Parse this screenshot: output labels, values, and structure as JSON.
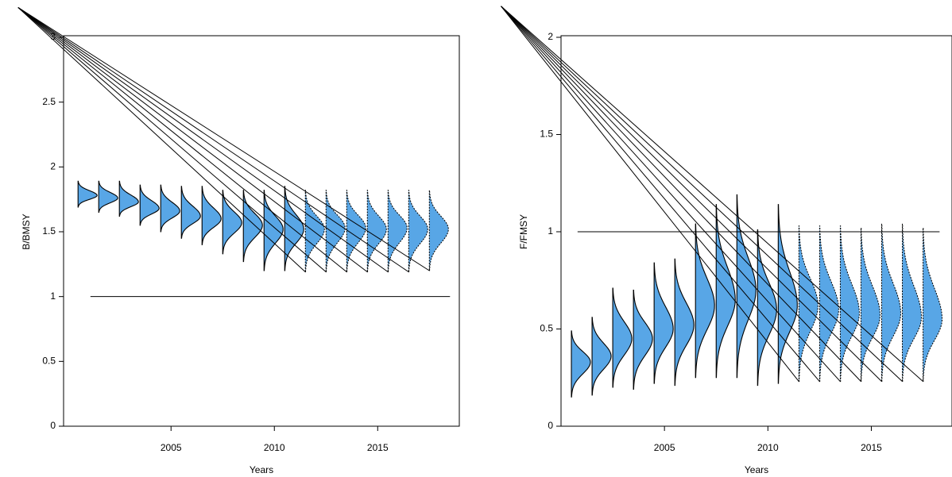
{
  "chart_data": [
    {
      "type": "violin",
      "y_label": "B/BMSY",
      "x_label": "Years",
      "xlim": [
        1999.8,
        2018.95
      ],
      "ylim": [
        0,
        3
      ],
      "xticks": [
        2005,
        2010,
        2015
      ],
      "yticks": [
        0,
        0.5,
        1,
        1.5,
        2,
        2.5,
        3
      ],
      "color": "#58a6e6",
      "x": [
        2000.5,
        2001.5,
        2002.5,
        2003.5,
        2004.5,
        2005.5,
        2006.5,
        2007.5,
        2008.5,
        2009.5,
        2010.5,
        2011.5,
        2012.5,
        2013.5,
        2014.5,
        2015.5,
        2016.5,
        2017.5
      ],
      "low": [
        1.69,
        1.65,
        1.62,
        1.55,
        1.5,
        1.45,
        1.4,
        1.33,
        1.27,
        1.2,
        1.2,
        1.19,
        1.19,
        1.19,
        1.19,
        1.19,
        1.19,
        1.2
      ],
      "mode": [
        1.78,
        1.76,
        1.73,
        1.68,
        1.66,
        1.62,
        1.6,
        1.57,
        1.55,
        1.52,
        1.52,
        1.52,
        1.53,
        1.53,
        1.52,
        1.53,
        1.52,
        1.52
      ],
      "high": [
        1.89,
        1.89,
        1.89,
        1.86,
        1.86,
        1.85,
        1.85,
        1.82,
        1.82,
        1.82,
        1.85,
        1.82,
        1.82,
        1.82,
        1.82,
        1.82,
        1.82,
        1.82
      ],
      "projected": [
        false,
        false,
        false,
        false,
        false,
        false,
        false,
        false,
        false,
        false,
        false,
        true,
        true,
        true,
        true,
        true,
        true,
        true
      ],
      "reference": {
        "value": 1,
        "x": [
          2001.1,
          2018.5
        ]
      },
      "segments": [
        {
          "x": [
            1997.6,
            2011.5
          ],
          "y": [
            3.23,
            1.19
          ]
        },
        {
          "x": [
            1997.6,
            2012.5
          ],
          "y": [
            3.23,
            1.19
          ]
        },
        {
          "x": [
            1997.6,
            2013.5
          ],
          "y": [
            3.23,
            1.19
          ]
        },
        {
          "x": [
            1997.6,
            2014.5
          ],
          "y": [
            3.23,
            1.19
          ]
        },
        {
          "x": [
            1997.6,
            2015.5
          ],
          "y": [
            3.23,
            1.19
          ]
        },
        {
          "x": [
            1997.6,
            2016.5
          ],
          "y": [
            3.23,
            1.19
          ]
        },
        {
          "x": [
            1997.6,
            2017.5
          ],
          "y": [
            3.23,
            1.2
          ]
        }
      ]
    },
    {
      "type": "violin",
      "y_label": "F/FMSY",
      "x_label": "Years",
      "xlim": [
        2000,
        2018.9
      ],
      "ylim": [
        0,
        2
      ],
      "xticks": [
        2005,
        2010,
        2015
      ],
      "yticks": [
        0,
        0.5,
        1,
        1.5,
        2
      ],
      "color": "#58a6e6",
      "x": [
        2000.5,
        2001.5,
        2002.5,
        2003.5,
        2004.5,
        2005.5,
        2006.5,
        2007.5,
        2008.5,
        2009.5,
        2010.5,
        2011.5,
        2012.5,
        2013.5,
        2014.5,
        2015.5,
        2016.5,
        2017.5
      ],
      "low": [
        0.15,
        0.16,
        0.2,
        0.19,
        0.22,
        0.21,
        0.25,
        0.25,
        0.25,
        0.21,
        0.22,
        0.23,
        0.23,
        0.23,
        0.23,
        0.23,
        0.23,
        0.23
      ],
      "mode": [
        0.33,
        0.36,
        0.45,
        0.45,
        0.5,
        0.52,
        0.62,
        0.65,
        0.7,
        0.6,
        0.62,
        0.62,
        0.6,
        0.58,
        0.57,
        0.58,
        0.56,
        0.55
      ],
      "high": [
        0.49,
        0.56,
        0.71,
        0.7,
        0.84,
        0.86,
        1.04,
        1.14,
        1.19,
        1.01,
        1.14,
        1.03,
        1.03,
        1.03,
        1.02,
        1.04,
        1.04,
        1.02
      ],
      "projected": [
        false,
        false,
        false,
        false,
        false,
        false,
        false,
        false,
        false,
        false,
        false,
        true,
        true,
        true,
        true,
        true,
        true,
        true
      ],
      "reference": {
        "value": 1,
        "x": [
          2000.8,
          2018.3
        ]
      },
      "segments": [
        {
          "x": [
            1997.1,
            2011.5
          ],
          "y": [
            2.16,
            0.23
          ]
        },
        {
          "x": [
            1997.1,
            2012.5
          ],
          "y": [
            2.16,
            0.23
          ]
        },
        {
          "x": [
            1997.1,
            2013.5
          ],
          "y": [
            2.16,
            0.23
          ]
        },
        {
          "x": [
            1997.1,
            2014.5
          ],
          "y": [
            2.16,
            0.23
          ]
        },
        {
          "x": [
            1997.1,
            2015.5
          ],
          "y": [
            2.16,
            0.23
          ]
        },
        {
          "x": [
            1997.1,
            2016.5
          ],
          "y": [
            2.16,
            0.23
          ]
        },
        {
          "x": [
            1997.1,
            2017.5
          ],
          "y": [
            2.16,
            0.23
          ]
        }
      ]
    }
  ]
}
